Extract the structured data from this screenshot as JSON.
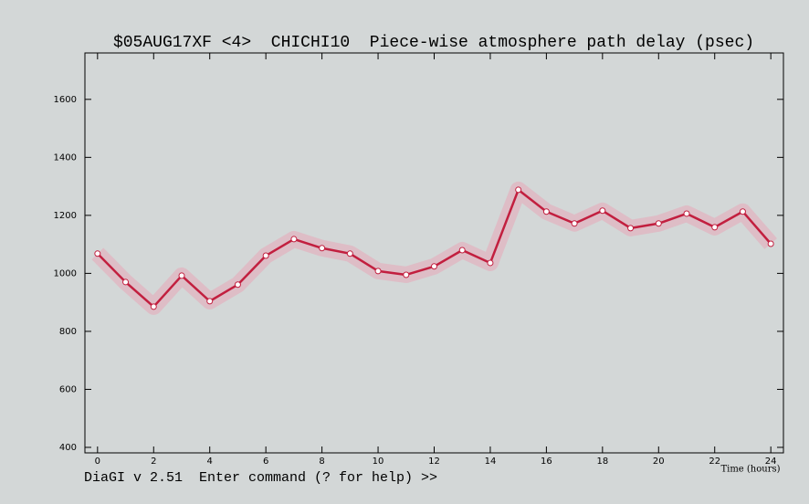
{
  "chart_data": {
    "type": "line",
    "title": "$05AUG17XF <4>  CHICHI10  Piece-wise atmosphere path delay (psec)",
    "x_label": "Time (hours)",
    "x": [
      0,
      1,
      2,
      3,
      4,
      5,
      6,
      7,
      8,
      9,
      10,
      11,
      12,
      13,
      14,
      15,
      16,
      17,
      18,
      19,
      20,
      21,
      22,
      23,
      24
    ],
    "series": [
      {
        "color": "#c21f3f",
        "values": [
          1068,
          970,
          885,
          992,
          904,
          961,
          1061,
          1118,
          1087,
          1068,
          1008,
          995,
          1024,
          1080,
          1036,
          1288,
          1213,
          1172,
          1216,
          1156,
          1172,
          1206,
          1159,
          1213,
          1102
        ]
      }
    ],
    "xlim": [
      -0.45,
      24.45
    ],
    "xticks": [
      0,
      2,
      4,
      6,
      8,
      10,
      12,
      14,
      16,
      18,
      20,
      22,
      24
    ],
    "ylim": [
      381,
      1760
    ],
    "yticks": [
      400,
      600,
      800,
      1000,
      1200,
      1400,
      1600
    ]
  },
  "command_line": "DiaGI v 2.51  Enter command (? for help) >>"
}
